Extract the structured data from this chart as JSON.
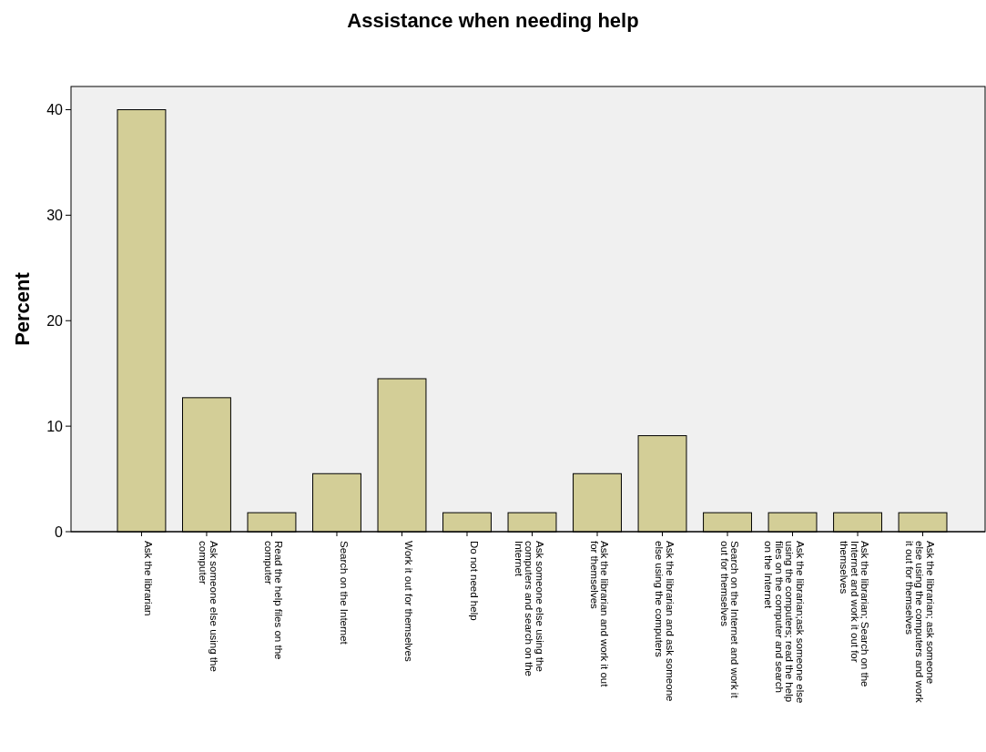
{
  "chart_data": {
    "type": "bar",
    "title": "Assistance when needing help",
    "ylabel": "Percent",
    "categories": [
      "Ask the librarian",
      "Ask someone else using the computer",
      "Read the help files on the computer",
      "Search on the Internet",
      "Work it out for themselves",
      "Do not need help",
      "Ask someone else using the computers and search on the Internet",
      "Ask the librarian and work it out for themselves",
      "Ask the librarian and ask someone else using the computers",
      "Search on the Internet and work it out for themselves",
      "Ask the librarian;ask someone else using the computers; read the help files on the computer and search on the Internet",
      "Ask the librarian; Search on the Internet and work it out for themselves",
      "Ask the librarian; ask someone else using the computers and work it out for themselves"
    ],
    "values": [
      40,
      12.7,
      1.8,
      5.5,
      14.5,
      1.8,
      1.8,
      5.5,
      9.1,
      1.8,
      1.8,
      1.8,
      1.8
    ],
    "color": "#d3ce97",
    "ylim": [
      0,
      42.2
    ],
    "yticks": [
      0,
      10,
      20,
      30,
      40
    ]
  }
}
